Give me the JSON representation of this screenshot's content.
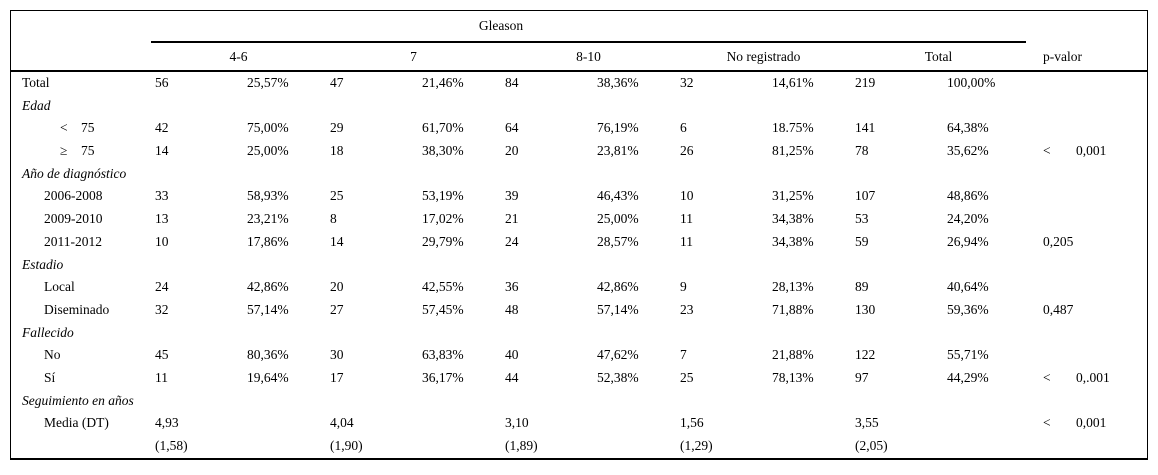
{
  "table": {
    "spanner_label": "Gleason",
    "group_headers": [
      "4-6",
      "7",
      "8-10",
      "No registrado",
      "Total"
    ],
    "p_header": "p-valor",
    "rows": [
      {
        "kind": "data",
        "indent": 0,
        "label": "Total",
        "cells": [
          "56",
          "25,57%",
          "47",
          "21,46%",
          "84",
          "38,36%",
          "32",
          "14,61%",
          "219",
          "100,00%"
        ],
        "p_sign": "",
        "p_value": ""
      },
      {
        "kind": "section",
        "label": "Edad"
      },
      {
        "kind": "data",
        "indent": 1,
        "label_sign": "<",
        "label_num": "75",
        "cells": [
          "42",
          "75,00%",
          "29",
          "61,70%",
          "64",
          "76,19%",
          "6",
          "18.75%",
          "141",
          "64,38%"
        ],
        "p_sign": "",
        "p_value": ""
      },
      {
        "kind": "data",
        "indent": 1,
        "label_sign": "≥",
        "label_num": "75",
        "cells": [
          "14",
          "25,00%",
          "18",
          "38,30%",
          "20",
          "23,81%",
          "26",
          "81,25%",
          "78",
          "35,62%"
        ],
        "p_sign": "<",
        "p_value": "0,001"
      },
      {
        "kind": "section",
        "label": "Año de diagnóstico"
      },
      {
        "kind": "data",
        "indent": 1,
        "label": "2006-2008",
        "cells": [
          "33",
          "58,93%",
          "25",
          "53,19%",
          "39",
          "46,43%",
          "10",
          "31,25%",
          "107",
          "48,86%"
        ],
        "p_sign": "",
        "p_value": ""
      },
      {
        "kind": "data",
        "indent": 1,
        "label": "2009-2010",
        "cells": [
          "13",
          "23,21%",
          "8",
          "17,02%",
          "21",
          "25,00%",
          "11",
          "34,38%",
          "53",
          "24,20%"
        ],
        "p_sign": "",
        "p_value": ""
      },
      {
        "kind": "data",
        "indent": 1,
        "label": "2011-2012",
        "cells": [
          "10",
          "17,86%",
          "14",
          "29,79%",
          "24",
          "28,57%",
          "11",
          "34,38%",
          "59",
          "26,94%"
        ],
        "p_sign": "",
        "p_value": "0,205"
      },
      {
        "kind": "section",
        "label": "Estadio"
      },
      {
        "kind": "data",
        "indent": 1,
        "label": "Local",
        "cells": [
          "24",
          "42,86%",
          "20",
          "42,55%",
          "36",
          "42,86%",
          "9",
          "28,13%",
          "89",
          "40,64%"
        ],
        "p_sign": "",
        "p_value": ""
      },
      {
        "kind": "data",
        "indent": 1,
        "label": "Diseminado",
        "cells": [
          "32",
          "57,14%",
          "27",
          "57,45%",
          "48",
          "57,14%",
          "23",
          "71,88%",
          "130",
          "59,36%"
        ],
        "p_sign": "",
        "p_value": "0,487"
      },
      {
        "kind": "section",
        "label": "Fallecido"
      },
      {
        "kind": "data",
        "indent": 1,
        "label": "No",
        "cells": [
          "45",
          "80,36%",
          "30",
          "63,83%",
          "40",
          "47,62%",
          "7",
          "21,88%",
          "122",
          "55,71%"
        ],
        "p_sign": "",
        "p_value": ""
      },
      {
        "kind": "data",
        "indent": 1,
        "label": "Sí",
        "cells": [
          "11",
          "19,64%",
          "17",
          "36,17%",
          "44",
          "52,38%",
          "25",
          "78,13%",
          "97",
          "44,29%"
        ],
        "p_sign": "<",
        "p_value": "0,.001"
      },
      {
        "kind": "section",
        "label": "Seguimiento en años"
      },
      {
        "kind": "stat",
        "indent": 1,
        "label": "Media (DT)",
        "means": [
          "4,93",
          "4,04",
          "3,10",
          "1,56",
          "3,55"
        ],
        "sds": [
          "(1,58)",
          "(1,90)",
          "(1,89)",
          "(1,29)",
          "(2,05)"
        ],
        "p_sign": "<",
        "p_value": "0,001"
      }
    ]
  }
}
